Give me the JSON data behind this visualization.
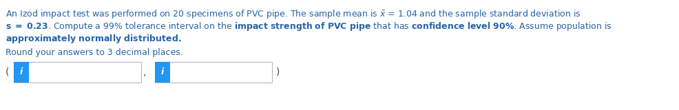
{
  "background_color": "#ffffff",
  "text_color": "#2563a8",
  "bold_parts": [
    "s = 0.23",
    "impact strength of PVC pipe",
    "confidence level 90%"
  ],
  "line1": "An Izod impact test was performed on 20 specimens of PVC pipe. The sample mean is $\\bar{x}$ = 1.04 and the sample standard deviation is",
  "line2": "s = 0.23. Compute a 99% tolerance interval on the impact strength of PVC pipe that has confidence level 90%. Assume population is",
  "line3": "approximately normally distributed.",
  "round_line": "Round your answers to 3 decimal places.",
  "box_blue": "#2196f3",
  "box_border": "#b0b8c8",
  "i_letter": "i",
  "open_paren": "(",
  "comma": ",",
  "close_paren": ")",
  "font_size": 9.0,
  "fig_width": 9.86,
  "fig_height": 1.6,
  "dpi": 100
}
